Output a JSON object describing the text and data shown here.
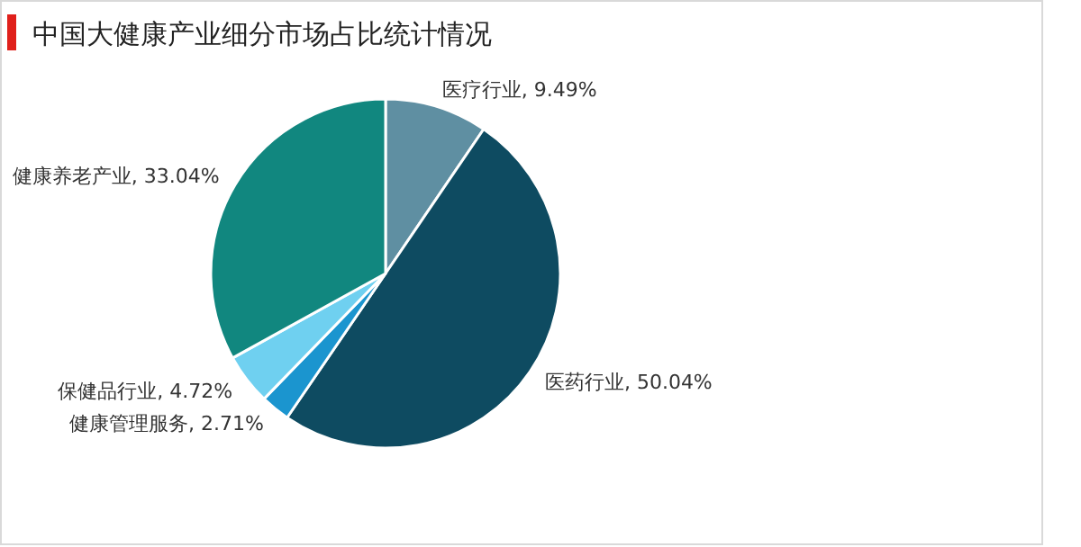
{
  "chart_data": {
    "type": "pie",
    "title": "中国大健康产业细分市场占比统计情况",
    "categories": [
      "医疗行业",
      "医药行业",
      "健康管理服务",
      "保健品行业",
      "健康养老产业"
    ],
    "values": [
      9.49,
      50.04,
      2.71,
      4.72,
      33.04
    ],
    "value_labels": [
      "9.49%",
      "50.04%",
      "2.71%",
      "4.72%",
      "33.04%"
    ],
    "colors": [
      "#5f8fa2",
      "#0e4b61",
      "#1b95cf",
      "#6fd0f0",
      "#11877f"
    ]
  }
}
